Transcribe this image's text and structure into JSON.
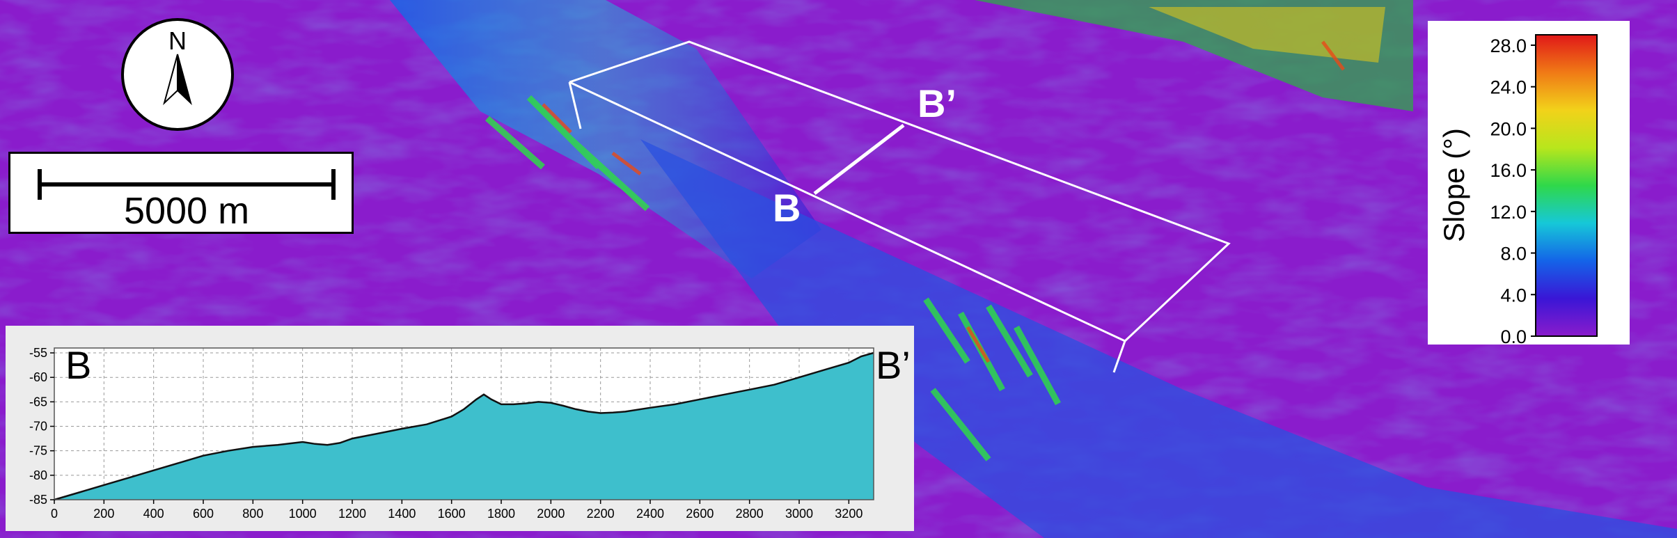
{
  "compass": {
    "label": "N"
  },
  "scale_bar": {
    "label": "5000 m"
  },
  "map_labels": {
    "start": "B",
    "end": "B’"
  },
  "legend": {
    "title": "Slope (°)",
    "ticks": [
      "28.0",
      "24.0",
      "20.0",
      "16.0",
      "12.0",
      "8.0",
      "4.0",
      "0.0"
    ],
    "min": 0,
    "max": 29,
    "colors": [
      "#8a1ccc",
      "#3a16d6",
      "#1464e8",
      "#16c8d8",
      "#2fd84a",
      "#b8e61c",
      "#f2d21a",
      "#f07a16",
      "#e01818"
    ]
  },
  "chart_data": {
    "type": "area",
    "title": "",
    "start_label": "B",
    "end_label": "B’",
    "xlabel": "",
    "ylabel": "",
    "xlim": [
      0,
      3300
    ],
    "ylim": [
      -85,
      -54
    ],
    "xticks": [
      0,
      200,
      400,
      600,
      800,
      1000,
      1200,
      1400,
      1600,
      1800,
      2000,
      2200,
      2400,
      2600,
      2800,
      3000,
      3200
    ],
    "yticks": [
      -55,
      -60,
      -65,
      -70,
      -75,
      -80,
      -85
    ],
    "grid": true,
    "fill_color": "#3ebfcc",
    "x": [
      0,
      100,
      200,
      300,
      400,
      500,
      600,
      700,
      800,
      900,
      1000,
      1050,
      1100,
      1150,
      1200,
      1300,
      1400,
      1500,
      1600,
      1650,
      1700,
      1730,
      1760,
      1800,
      1850,
      1900,
      1950,
      2000,
      2050,
      2100,
      2150,
      2200,
      2250,
      2300,
      2400,
      2500,
      2600,
      2700,
      2800,
      2900,
      3000,
      3100,
      3200,
      3250,
      3300
    ],
    "y": [
      -85,
      -83.5,
      -82,
      -80.5,
      -79,
      -77.5,
      -76,
      -75,
      -74.2,
      -73.8,
      -73.2,
      -73.6,
      -73.8,
      -73.4,
      -72.5,
      -71.5,
      -70.5,
      -69.6,
      -68,
      -66.5,
      -64.5,
      -63.5,
      -64.5,
      -65.5,
      -65.5,
      -65.3,
      -65,
      -65.2,
      -65.8,
      -66.5,
      -67,
      -67.3,
      -67.2,
      -67,
      -66.2,
      -65.5,
      -64.5,
      -63.5,
      -62.5,
      -61.5,
      -60,
      -58.5,
      -57,
      -55.7,
      -55
    ]
  }
}
